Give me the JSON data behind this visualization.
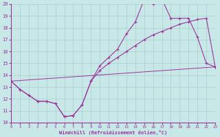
{
  "xlabel": "Windchill (Refroidissement éolien,°C)",
  "xlim": [
    0,
    23
  ],
  "ylim": [
    10,
    20
  ],
  "xticks": [
    0,
    1,
    2,
    3,
    4,
    5,
    6,
    7,
    8,
    9,
    10,
    11,
    12,
    13,
    14,
    15,
    16,
    17,
    18,
    19,
    20,
    21,
    22,
    23
  ],
  "yticks": [
    10,
    11,
    12,
    13,
    14,
    15,
    16,
    17,
    18,
    19,
    20
  ],
  "bg_color": "#c8e8e8",
  "line_color": "#993399",
  "grid_color": "#aacccc",
  "line1_x": [
    0,
    1,
    2,
    3,
    4,
    5,
    6,
    7,
    8,
    9,
    10,
    11,
    12,
    13,
    14,
    15,
    16,
    17,
    18,
    19,
    20,
    21,
    22,
    23
  ],
  "line1_y": [
    13.5,
    12.8,
    12.3,
    11.8,
    11.8,
    11.6,
    10.5,
    10.6,
    11.5,
    13.5,
    14.8,
    15.5,
    16.2,
    17.5,
    18.5,
    20.4,
    20.0,
    20.4,
    18.8,
    18.8,
    18.8,
    17.2,
    15.0,
    14.7
  ],
  "line2_x": [
    0,
    1,
    2,
    3,
    4,
    5,
    6,
    7,
    8,
    9,
    10,
    11,
    12,
    13,
    14,
    15,
    16,
    17,
    18,
    19,
    20,
    21,
    22,
    23
  ],
  "line2_y": [
    13.5,
    12.8,
    12.3,
    11.8,
    11.8,
    11.6,
    10.5,
    10.6,
    11.5,
    13.5,
    14.4,
    15.0,
    15.5,
    16.0,
    16.5,
    17.0,
    17.4,
    17.7,
    18.0,
    18.3,
    18.5,
    18.7,
    18.8,
    14.7
  ],
  "line3_x": [
    0,
    23
  ],
  "line3_y": [
    13.5,
    14.7
  ]
}
